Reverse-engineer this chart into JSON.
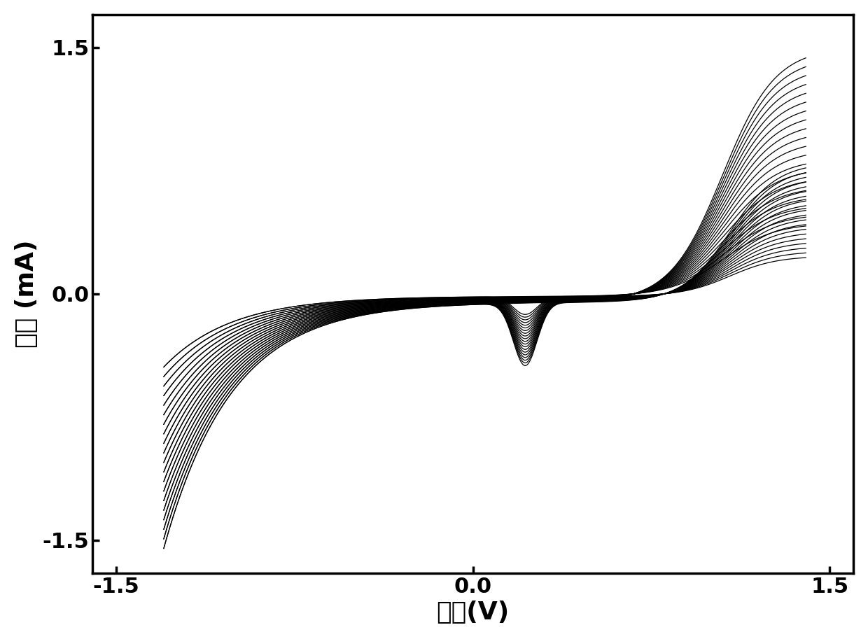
{
  "xlabel": "电压(V)",
  "ylabel": "电流 (mA)",
  "xlim": [
    -1.6,
    1.6
  ],
  "ylim": [
    -1.7,
    1.7
  ],
  "xticks": [
    -1.5,
    0.0,
    1.5
  ],
  "yticks": [
    -1.5,
    0.0,
    1.5
  ],
  "tick_fontsize": 22,
  "label_fontsize": 26,
  "line_color": "#000000",
  "background_color": "#ffffff",
  "n_cycles": 20,
  "linewidth": 0.9,
  "spine_linewidth": 2.5
}
